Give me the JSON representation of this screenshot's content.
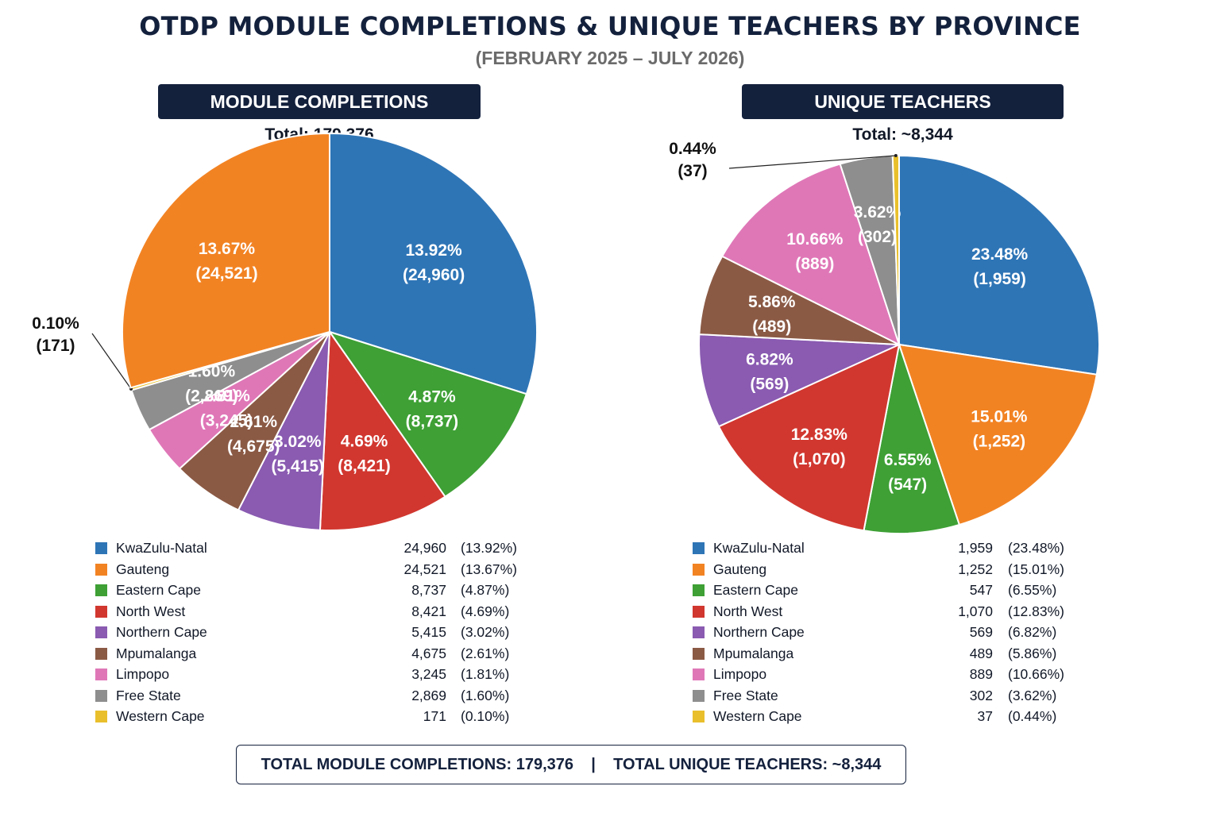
{
  "title": "OTDP MODULE COMPLETIONS & UNIQUE TEACHERS BY PROVINCE",
  "subtitle": "(FEBRUARY 2025 – JULY 2026)",
  "footer": {
    "completions": "TOTAL MODULE COMPLETIONS: 179,376",
    "separator": "|",
    "teachers": "TOTAL UNIQUE TEACHERS: ~8,344"
  },
  "chart_data": [
    {
      "type": "pie",
      "title": "MODULE COMPLETIONS",
      "total_label": "Total: 179,376",
      "categories": [
        "KwaZulu-Natal",
        "Gauteng",
        "Eastern Cape",
        "North West",
        "Northern Cape",
        "Mpumalanga",
        "Limpopo",
        "Free State",
        "Western Cape"
      ],
      "values": [
        24960,
        24521,
        8737,
        8421,
        5415,
        4675,
        3245,
        2869,
        171
      ],
      "value_labels": [
        "24,960",
        "24,521",
        "8,737",
        "8,421",
        "5,415",
        "4,675",
        "3,245",
        "2,869",
        "171"
      ],
      "percent_labels": [
        "13.92%",
        "13.67%",
        "4.87%",
        "4.69%",
        "3.02%",
        "2.61%",
        "1.81%",
        "1.60%",
        "0.10%"
      ],
      "colors": [
        "#2e75b6",
        "#f28323",
        "#3ea035",
        "#d1372f",
        "#8a5bb1",
        "#8b5a45",
        "#df77b7",
        "#8e8e8e",
        "#e9c02c"
      ],
      "legend": "bottom"
    },
    {
      "type": "pie",
      "title": "UNIQUE TEACHERS",
      "total_label": "Total: ~8,344",
      "categories": [
        "KwaZulu-Natal",
        "Gauteng",
        "Eastern Cape",
        "North West",
        "Northern Cape",
        "Mpumalanga",
        "Limpopo",
        "Free State",
        "Western Cape"
      ],
      "values": [
        1959,
        1252,
        547,
        1070,
        569,
        489,
        889,
        302,
        37
      ],
      "value_labels": [
        "1,959",
        "1,252",
        "547",
        "1,070",
        "569",
        "489",
        "889",
        "302",
        "37"
      ],
      "percent_labels": [
        "23.48%",
        "15.01%",
        "6.55%",
        "12.83%",
        "6.82%",
        "5.86%",
        "10.66%",
        "3.62%",
        "0.44%"
      ],
      "colors": [
        "#2e75b6",
        "#f28323",
        "#3ea035",
        "#d1372f",
        "#8a5bb1",
        "#8b5a45",
        "#df77b7",
        "#8e8e8e",
        "#e9c02c"
      ],
      "legend": "bottom"
    }
  ]
}
